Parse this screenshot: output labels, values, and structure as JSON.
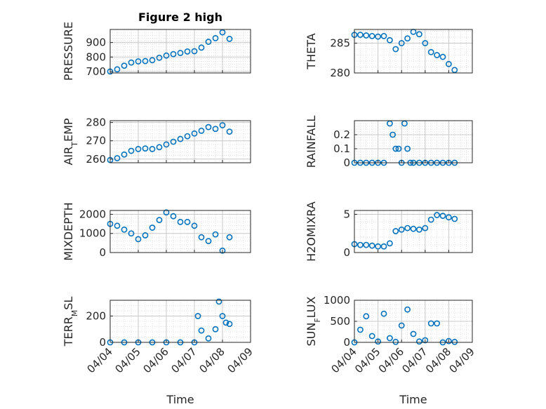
{
  "figure": {
    "title": "Figure 2 high"
  },
  "colors": {
    "marker": "#0072BD",
    "axis": "#262626",
    "grid": "#c8c8c8"
  },
  "chart_data": [
    {
      "id": "pressure",
      "type": "scatter",
      "title": "Figure 2 high",
      "ylabel": "PRESSURE",
      "xlabel": "",
      "xlim": [
        "04/04",
        "04/09"
      ],
      "ylim": [
        690,
        990
      ],
      "yticks": [
        700,
        800,
        900
      ],
      "ytick_labels": [
        "700",
        "800",
        "900"
      ],
      "xtick_labels": [],
      "x": [
        "04/04 00:00",
        "04/04 06:00",
        "04/04 12:00",
        "04/04 18:00",
        "04/05 00:00",
        "04/05 06:00",
        "04/05 12:00",
        "04/05 18:00",
        "04/06 00:00",
        "04/06 06:00",
        "04/06 12:00",
        "04/06 18:00",
        "04/07 00:00",
        "04/07 06:00",
        "04/07 12:00",
        "04/07 18:00",
        "04/08 00:00",
        "04/08 06:00"
      ],
      "y": [
        700,
        715,
        740,
        762,
        770,
        772,
        778,
        795,
        810,
        820,
        828,
        838,
        840,
        865,
        905,
        930,
        970,
        925
      ]
    },
    {
      "id": "theta",
      "type": "scatter",
      "ylabel": "THETA",
      "xlabel": "",
      "xlim": [
        "04/04",
        "04/09"
      ],
      "ylim": [
        280,
        287.3
      ],
      "yticks": [
        280,
        285
      ],
      "ytick_labels": [
        "280",
        "285"
      ],
      "xtick_labels": [],
      "x": [
        "04/04 00:00",
        "04/04 06:00",
        "04/04 12:00",
        "04/04 18:00",
        "04/05 00:00",
        "04/05 06:00",
        "04/05 12:00",
        "04/05 18:00",
        "04/06 00:00",
        "04/06 06:00",
        "04/06 12:00",
        "04/06 18:00",
        "04/07 00:00",
        "04/07 06:00",
        "04/07 12:00",
        "04/07 18:00",
        "04/08 00:00",
        "04/08 06:00"
      ],
      "y": [
        286.4,
        286.4,
        286.3,
        286.2,
        286.1,
        286.2,
        285.5,
        284.0,
        285.0,
        285.8,
        286.9,
        286.5,
        285.0,
        283.5,
        283.0,
        282.7,
        281.5,
        280.5
      ]
    },
    {
      "id": "air_temp",
      "type": "scatter",
      "ylabel": "AIR_TEMP",
      "ylabel_main": "AIR",
      "ylabel_sub": "T",
      "ylabel_rest": "EMP",
      "xlabel": "",
      "xlim": [
        "04/04",
        "04/09"
      ],
      "ylim": [
        258,
        281
      ],
      "yticks": [
        260,
        270,
        280
      ],
      "ytick_labels": [
        "260",
        "270",
        "280"
      ],
      "xtick_labels": [],
      "x": [
        "04/04 00:00",
        "04/04 06:00",
        "04/04 12:00",
        "04/04 18:00",
        "04/05 00:00",
        "04/05 06:00",
        "04/05 12:00",
        "04/05 18:00",
        "04/06 00:00",
        "04/06 06:00",
        "04/06 12:00",
        "04/06 18:00",
        "04/07 00:00",
        "04/07 06:00",
        "04/07 12:00",
        "04/07 18:00",
        "04/08 00:00",
        "04/08 06:00"
      ],
      "y": [
        259.5,
        260.5,
        262.5,
        264.5,
        265.5,
        265.8,
        265.5,
        266.5,
        268,
        269.5,
        271,
        272.5,
        274,
        275.5,
        277.5,
        276.5,
        278.5,
        275
      ]
    },
    {
      "id": "rainfall",
      "type": "scatter",
      "ylabel": "RAINFALL",
      "xlabel": "",
      "xlim": [
        "04/04",
        "04/09"
      ],
      "ylim": [
        0,
        0.3
      ],
      "yticks": [
        0,
        0.1,
        0.2
      ],
      "ytick_labels": [
        "0",
        "0.1",
        "0.2"
      ],
      "xtick_labels": [],
      "x": [
        "04/04 00:00",
        "04/04 06:00",
        "04/04 12:00",
        "04/04 18:00",
        "04/05 00:00",
        "04/05 06:00",
        "04/05 12:00",
        "04/05 15:00",
        "04/05 18:00",
        "04/05 21:00",
        "04/06 00:00",
        "04/06 03:00",
        "04/06 06:00",
        "04/06 09:00",
        "04/06 12:00",
        "04/06 18:00",
        "04/07 00:00",
        "04/07 06:00",
        "04/07 12:00",
        "04/07 18:00",
        "04/08 00:00",
        "04/08 06:00"
      ],
      "y": [
        0,
        0,
        0,
        0,
        0,
        0,
        0.28,
        0.2,
        0.1,
        0.1,
        0,
        0.28,
        0.1,
        0,
        0,
        0,
        0,
        0,
        0,
        0,
        0,
        0
      ]
    },
    {
      "id": "mixdepth",
      "type": "scatter",
      "ylabel": "MIXDEPTH",
      "xlabel": "",
      "xlim": [
        "04/04",
        "04/09"
      ],
      "ylim": [
        0,
        2200
      ],
      "yticks": [
        0,
        1000,
        2000
      ],
      "ytick_labels": [
        "0",
        "1000",
        "2000"
      ],
      "xtick_labels": [],
      "x": [
        "04/04 00:00",
        "04/04 06:00",
        "04/04 12:00",
        "04/04 18:00",
        "04/05 00:00",
        "04/05 06:00",
        "04/05 12:00",
        "04/05 18:00",
        "04/06 00:00",
        "04/06 06:00",
        "04/06 12:00",
        "04/06 18:00",
        "04/07 00:00",
        "04/07 06:00",
        "04/07 12:00",
        "04/07 18:00",
        "04/08 00:00",
        "04/08 06:00"
      ],
      "y": [
        1500,
        1400,
        1200,
        1000,
        700,
        900,
        1300,
        1700,
        2100,
        1900,
        1600,
        1600,
        1400,
        800,
        600,
        950,
        100,
        800
      ]
    },
    {
      "id": "h2omixra",
      "type": "scatter",
      "ylabel": "H2OMIXRA",
      "xlabel": "",
      "xlim": [
        "04/04",
        "04/09"
      ],
      "ylim": [
        0,
        5.5
      ],
      "yticks": [
        0,
        5
      ],
      "ytick_labels": [
        "0",
        "5"
      ],
      "xtick_labels": [],
      "x": [
        "04/04 00:00",
        "04/04 06:00",
        "04/04 12:00",
        "04/04 18:00",
        "04/05 00:00",
        "04/05 06:00",
        "04/05 12:00",
        "04/05 18:00",
        "04/06 00:00",
        "04/06 06:00",
        "04/06 12:00",
        "04/06 18:00",
        "04/07 00:00",
        "04/07 06:00",
        "04/07 12:00",
        "04/07 18:00",
        "04/08 00:00",
        "04/08 06:00"
      ],
      "y": [
        1.1,
        1.0,
        1.0,
        0.9,
        0.8,
        0.8,
        1.2,
        2.8,
        3.0,
        3.2,
        3.1,
        3.0,
        3.2,
        4.3,
        4.9,
        4.8,
        4.6,
        4.4
      ]
    },
    {
      "id": "terr_msl",
      "type": "scatter",
      "ylabel": "TERR_MSL",
      "ylabel_main": "TERR",
      "ylabel_sub": "M",
      "ylabel_rest": "SL",
      "xlabel": "Time",
      "xlim": [
        "04/04",
        "04/09"
      ],
      "ylim": [
        0,
        320
      ],
      "yticks": [
        0,
        200
      ],
      "ytick_labels": [
        "0",
        "200"
      ],
      "xtick_labels": [
        "04/04",
        "04/05",
        "04/06",
        "04/07",
        "04/08",
        "04/09"
      ],
      "x": [
        "04/04 00:00",
        "04/04 12:00",
        "04/05 00:00",
        "04/05 12:00",
        "04/06 00:00",
        "04/06 12:00",
        "04/07 00:00",
        "04/07 03:00",
        "04/07 06:00",
        "04/07 12:00",
        "04/07 18:00",
        "04/07 21:00",
        "04/08 00:00",
        "04/08 03:00",
        "04/08 06:00"
      ],
      "y": [
        0,
        0,
        0,
        0,
        0,
        0,
        0,
        200,
        90,
        30,
        100,
        310,
        200,
        150,
        140
      ]
    },
    {
      "id": "sun_flux",
      "type": "scatter",
      "ylabel": "SUN_FLUX",
      "ylabel_main": "SUN",
      "ylabel_sub": "F",
      "ylabel_rest": "LUX",
      "xlabel": "Time",
      "xlim": [
        "04/04",
        "04/09"
      ],
      "ylim": [
        0,
        1000
      ],
      "yticks": [
        0,
        500,
        1000
      ],
      "ytick_labels": [
        "0",
        "500",
        "1000"
      ],
      "xtick_labels": [
        "04/04",
        "04/05",
        "04/06",
        "04/07",
        "04/08",
        "04/09"
      ],
      "x": [
        "04/04 00:00",
        "04/04 06:00",
        "04/04 12:00",
        "04/04 18:00",
        "04/05 00:00",
        "04/05 06:00",
        "04/05 12:00",
        "04/05 18:00",
        "04/06 00:00",
        "04/06 06:00",
        "04/06 12:00",
        "04/06 18:00",
        "04/07 00:00",
        "04/07 06:00",
        "04/07 12:00",
        "04/07 18:00",
        "04/08 00:00",
        "04/08 06:00"
      ],
      "y": [
        0,
        300,
        620,
        150,
        20,
        680,
        100,
        10,
        400,
        780,
        200,
        20,
        50,
        450,
        450,
        0,
        30,
        10
      ]
    }
  ]
}
